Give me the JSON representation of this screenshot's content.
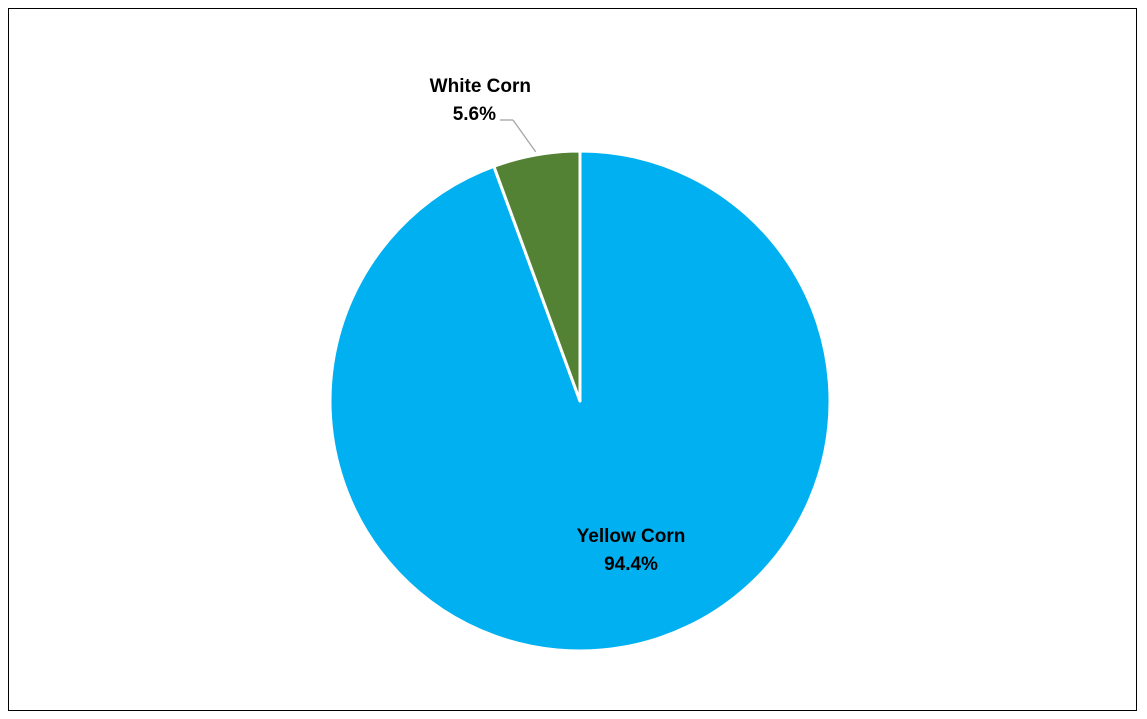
{
  "chart_data": {
    "type": "pie",
    "title": "",
    "slices": [
      {
        "name": "Yellow Corn",
        "value": 94.4,
        "label": "94.4%",
        "color": "#00B0F0"
      },
      {
        "name": "White Corn",
        "value": 5.6,
        "label": "5.6%",
        "color": "#548235"
      }
    ],
    "legend": "none",
    "leader_line_color": "#A6A6A6"
  }
}
